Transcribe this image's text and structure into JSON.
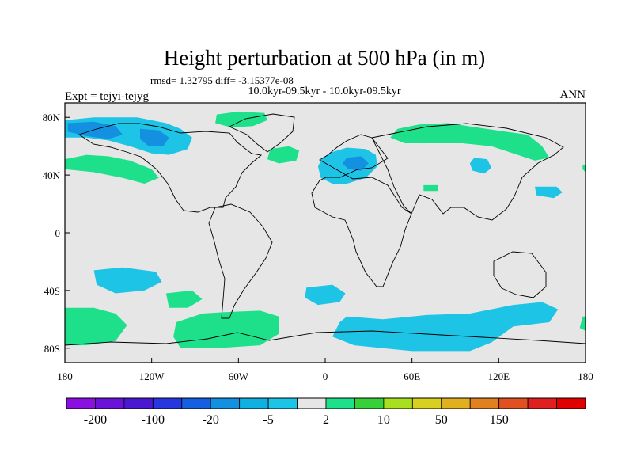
{
  "chart_data": {
    "type": "heatmap",
    "title": "Height perturbation at 500 hPa (in m)",
    "stats": "rmsd= 1.32795 diff= -3.15377e-08",
    "subtitle": "10.0kyr-09.5kyr - 10.0kyr-09.5kyr",
    "left_label": "Expt = tejyi-tejyg",
    "right_label": "ANN",
    "x_ticks": [
      {
        "value": -180,
        "label": "180"
      },
      {
        "value": -120,
        "label": "120W"
      },
      {
        "value": -60,
        "label": "60W"
      },
      {
        "value": 0,
        "label": "0"
      },
      {
        "value": 60,
        "label": "60E"
      },
      {
        "value": 120,
        "label": "120E"
      },
      {
        "value": 180,
        "label": "180"
      }
    ],
    "y_ticks": [
      {
        "value": 80,
        "label": "80N"
      },
      {
        "value": 40,
        "label": "40N"
      },
      {
        "value": 0,
        "label": "0"
      },
      {
        "value": -40,
        "label": "40S"
      },
      {
        "value": -80,
        "label": "80S"
      }
    ],
    "xlim": [
      -180,
      180
    ],
    "ylim": [
      -90,
      90
    ],
    "background_color": "#e6e6e6",
    "colorbar": {
      "colors": [
        "#8a10e0",
        "#6a12d8",
        "#4a18d0",
        "#2836e0",
        "#1460e0",
        "#1490e0",
        "#10b0e0",
        "#1ec4e6",
        "#e6e6e6",
        "#1ee08a",
        "#38d038",
        "#a8e020",
        "#d8d020",
        "#e0b020",
        "#e08020",
        "#e05020",
        "#e02020",
        "#e00000"
      ],
      "labels": [
        "-200",
        "-100",
        "-20",
        "-5",
        "2",
        "10",
        "50",
        "150"
      ]
    },
    "regions": [
      {
        "name": "north-pacific-america-low",
        "color": "#1ec4e6",
        "points": [
          [
            -180,
            78
          ],
          [
            -160,
            80
          ],
          [
            -130,
            80
          ],
          [
            -110,
            76
          ],
          [
            -100,
            72
          ],
          [
            -92,
            66
          ],
          [
            -95,
            58
          ],
          [
            -108,
            54
          ],
          [
            -120,
            55
          ],
          [
            -135,
            60
          ],
          [
            -150,
            64
          ],
          [
            -165,
            66
          ],
          [
            -180,
            66
          ]
        ]
      },
      {
        "name": "north-pacific-low-core",
        "color": "#1490e0",
        "points": [
          [
            -178,
            76
          ],
          [
            -160,
            77
          ],
          [
            -145,
            74
          ],
          [
            -140,
            68
          ],
          [
            -150,
            65
          ],
          [
            -165,
            67
          ],
          [
            -178,
            70
          ]
        ]
      },
      {
        "name": "north-america-low-core",
        "color": "#1490e0",
        "points": [
          [
            -128,
            72
          ],
          [
            -115,
            71
          ],
          [
            -108,
            66
          ],
          [
            -112,
            60
          ],
          [
            -122,
            60
          ],
          [
            -128,
            65
          ]
        ]
      },
      {
        "name": "north-pacific-high",
        "color": "#1ee08a",
        "points": [
          [
            -180,
            51
          ],
          [
            -165,
            54
          ],
          [
            -150,
            53
          ],
          [
            -135,
            50
          ],
          [
            -120,
            44
          ],
          [
            -115,
            38
          ],
          [
            -125,
            34
          ],
          [
            -140,
            38
          ],
          [
            -160,
            42
          ],
          [
            -180,
            44
          ]
        ]
      },
      {
        "name": "greenland-high",
        "color": "#1ee08a",
        "points": [
          [
            -75,
            82
          ],
          [
            -60,
            84
          ],
          [
            -42,
            83
          ],
          [
            -40,
            78
          ],
          [
            -50,
            74
          ],
          [
            -65,
            73
          ],
          [
            -76,
            76
          ]
        ]
      },
      {
        "name": "north-atlantic-high",
        "color": "#1ee08a",
        "points": [
          [
            -38,
            58
          ],
          [
            -25,
            60
          ],
          [
            -18,
            57
          ],
          [
            -20,
            50
          ],
          [
            -32,
            48
          ],
          [
            -40,
            51
          ]
        ]
      },
      {
        "name": "europe-low",
        "color": "#1ec4e6",
        "points": [
          [
            5,
            56
          ],
          [
            15,
            59
          ],
          [
            28,
            58
          ],
          [
            35,
            54
          ],
          [
            36,
            46
          ],
          [
            28,
            38
          ],
          [
            15,
            34
          ],
          [
            5,
            34
          ],
          [
            -3,
            38
          ],
          [
            -5,
            46
          ],
          [
            -2,
            52
          ]
        ]
      },
      {
        "name": "europe-low-core",
        "color": "#1490e0",
        "points": [
          [
            15,
            52
          ],
          [
            25,
            53
          ],
          [
            30,
            48
          ],
          [
            25,
            43
          ],
          [
            16,
            44
          ],
          [
            12,
            48
          ]
        ]
      },
      {
        "name": "siberia-high",
        "color": "#1ee08a",
        "points": [
          [
            50,
            72
          ],
          [
            65,
            75
          ],
          [
            85,
            76
          ],
          [
            105,
            73
          ],
          [
            125,
            70
          ],
          [
            140,
            68
          ],
          [
            150,
            60
          ],
          [
            155,
            52
          ],
          [
            145,
            50
          ],
          [
            130,
            55
          ],
          [
            115,
            60
          ],
          [
            95,
            62
          ],
          [
            75,
            62
          ],
          [
            55,
            62
          ],
          [
            45,
            66
          ]
        ]
      },
      {
        "name": "central-asia-low",
        "color": "#1ec4e6",
        "points": [
          [
            103,
            52
          ],
          [
            112,
            51
          ],
          [
            115,
            45
          ],
          [
            110,
            41
          ],
          [
            102,
            43
          ],
          [
            100,
            48
          ]
        ]
      },
      {
        "name": "middle-east-high",
        "color": "#1ee08a",
        "points": [
          [
            68,
            33
          ],
          [
            78,
            33
          ],
          [
            78,
            29
          ],
          [
            68,
            29
          ]
        ]
      },
      {
        "name": "northwest-pacific-low",
        "color": "#1ec4e6",
        "points": [
          [
            145,
            32
          ],
          [
            160,
            32
          ],
          [
            164,
            28
          ],
          [
            158,
            24
          ],
          [
            146,
            26
          ]
        ]
      },
      {
        "name": "south-pacific-low",
        "color": "#1ec4e6",
        "points": [
          [
            -160,
            -26
          ],
          [
            -140,
            -24
          ],
          [
            -117,
            -27
          ],
          [
            -113,
            -34
          ],
          [
            -125,
            -40
          ],
          [
            -145,
            -42
          ],
          [
            -158,
            -36
          ]
        ]
      },
      {
        "name": "south-pacific-west-high",
        "color": "#1ee08a",
        "points": [
          [
            -180,
            -52
          ],
          [
            -160,
            -52
          ],
          [
            -145,
            -56
          ],
          [
            -137,
            -64
          ],
          [
            -145,
            -75
          ],
          [
            -165,
            -78
          ],
          [
            -180,
            -78
          ]
        ]
      },
      {
        "name": "south-pacific-mid-high",
        "color": "#1ee08a",
        "points": [
          [
            -110,
            -42
          ],
          [
            -92,
            -40
          ],
          [
            -85,
            -46
          ],
          [
            -95,
            -52
          ],
          [
            -108,
            -52
          ]
        ]
      },
      {
        "name": "south-atlantic-high",
        "color": "#1ee08a",
        "points": [
          [
            -103,
            -62
          ],
          [
            -85,
            -56
          ],
          [
            -70,
            -55
          ],
          [
            -45,
            -54
          ],
          [
            -32,
            -58
          ],
          [
            -32,
            -70
          ],
          [
            -45,
            -78
          ],
          [
            -75,
            -80
          ],
          [
            -100,
            -80
          ],
          [
            -105,
            -72
          ]
        ]
      },
      {
        "name": "south-atlantic-low",
        "color": "#1ec4e6",
        "points": [
          [
            -13,
            -38
          ],
          [
            5,
            -36
          ],
          [
            14,
            -42
          ],
          [
            10,
            -48
          ],
          [
            -5,
            -50
          ],
          [
            -14,
            -45
          ]
        ]
      },
      {
        "name": "southern-ocean-low",
        "color": "#1ec4e6",
        "points": [
          [
            15,
            -58
          ],
          [
            40,
            -60
          ],
          [
            70,
            -57
          ],
          [
            100,
            -56
          ],
          [
            130,
            -50
          ],
          [
            150,
            -48
          ],
          [
            161,
            -53
          ],
          [
            155,
            -62
          ],
          [
            130,
            -65
          ],
          [
            115,
            -76
          ],
          [
            100,
            -82
          ],
          [
            60,
            -82
          ],
          [
            20,
            -78
          ],
          [
            5,
            -72
          ],
          [
            10,
            -62
          ]
        ]
      },
      {
        "name": "southern-ocean-east-high",
        "color": "#1ee08a",
        "points": [
          [
            178,
            -58
          ],
          [
            180,
            -58
          ],
          [
            180,
            -68
          ],
          [
            176,
            -66
          ]
        ]
      },
      {
        "name": "northeast-edge-high",
        "color": "#1ee08a",
        "points": [
          [
            178,
            47
          ],
          [
            180,
            47
          ],
          [
            180,
            42
          ],
          [
            178,
            44
          ]
        ]
      }
    ]
  }
}
